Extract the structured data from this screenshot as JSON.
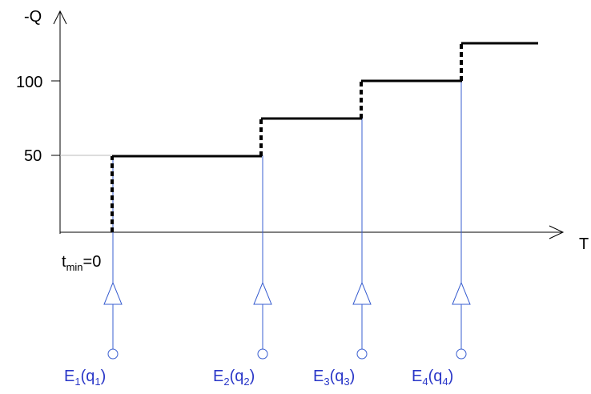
{
  "axes": {
    "y_label": "-Q",
    "x_label": "T",
    "origin_label": {
      "base": "t",
      "sub": "min",
      "rest": "=0"
    },
    "y_ticks": [
      {
        "value": 50,
        "label": "50"
      },
      {
        "value": 100,
        "label": "100"
      }
    ]
  },
  "chart_data": {
    "type": "line",
    "ylabel": "-Q",
    "xlabel": "T",
    "step_levels": [
      50,
      75,
      100,
      125
    ],
    "y_ticks": [
      50,
      100
    ]
  },
  "events": [
    {
      "name": "E",
      "index": "1",
      "arg": "q",
      "arg_index": "1"
    },
    {
      "name": "E",
      "index": "2",
      "arg": "q",
      "arg_index": "2"
    },
    {
      "name": "E",
      "index": "3",
      "arg": "q",
      "arg_index": "3"
    },
    {
      "name": "E",
      "index": "4",
      "arg": "q",
      "arg_index": "4"
    }
  ],
  "colors": {
    "axis": "#000000",
    "step": "#000000",
    "event": "#3a5fd0",
    "event_text": "#2a37c8"
  }
}
